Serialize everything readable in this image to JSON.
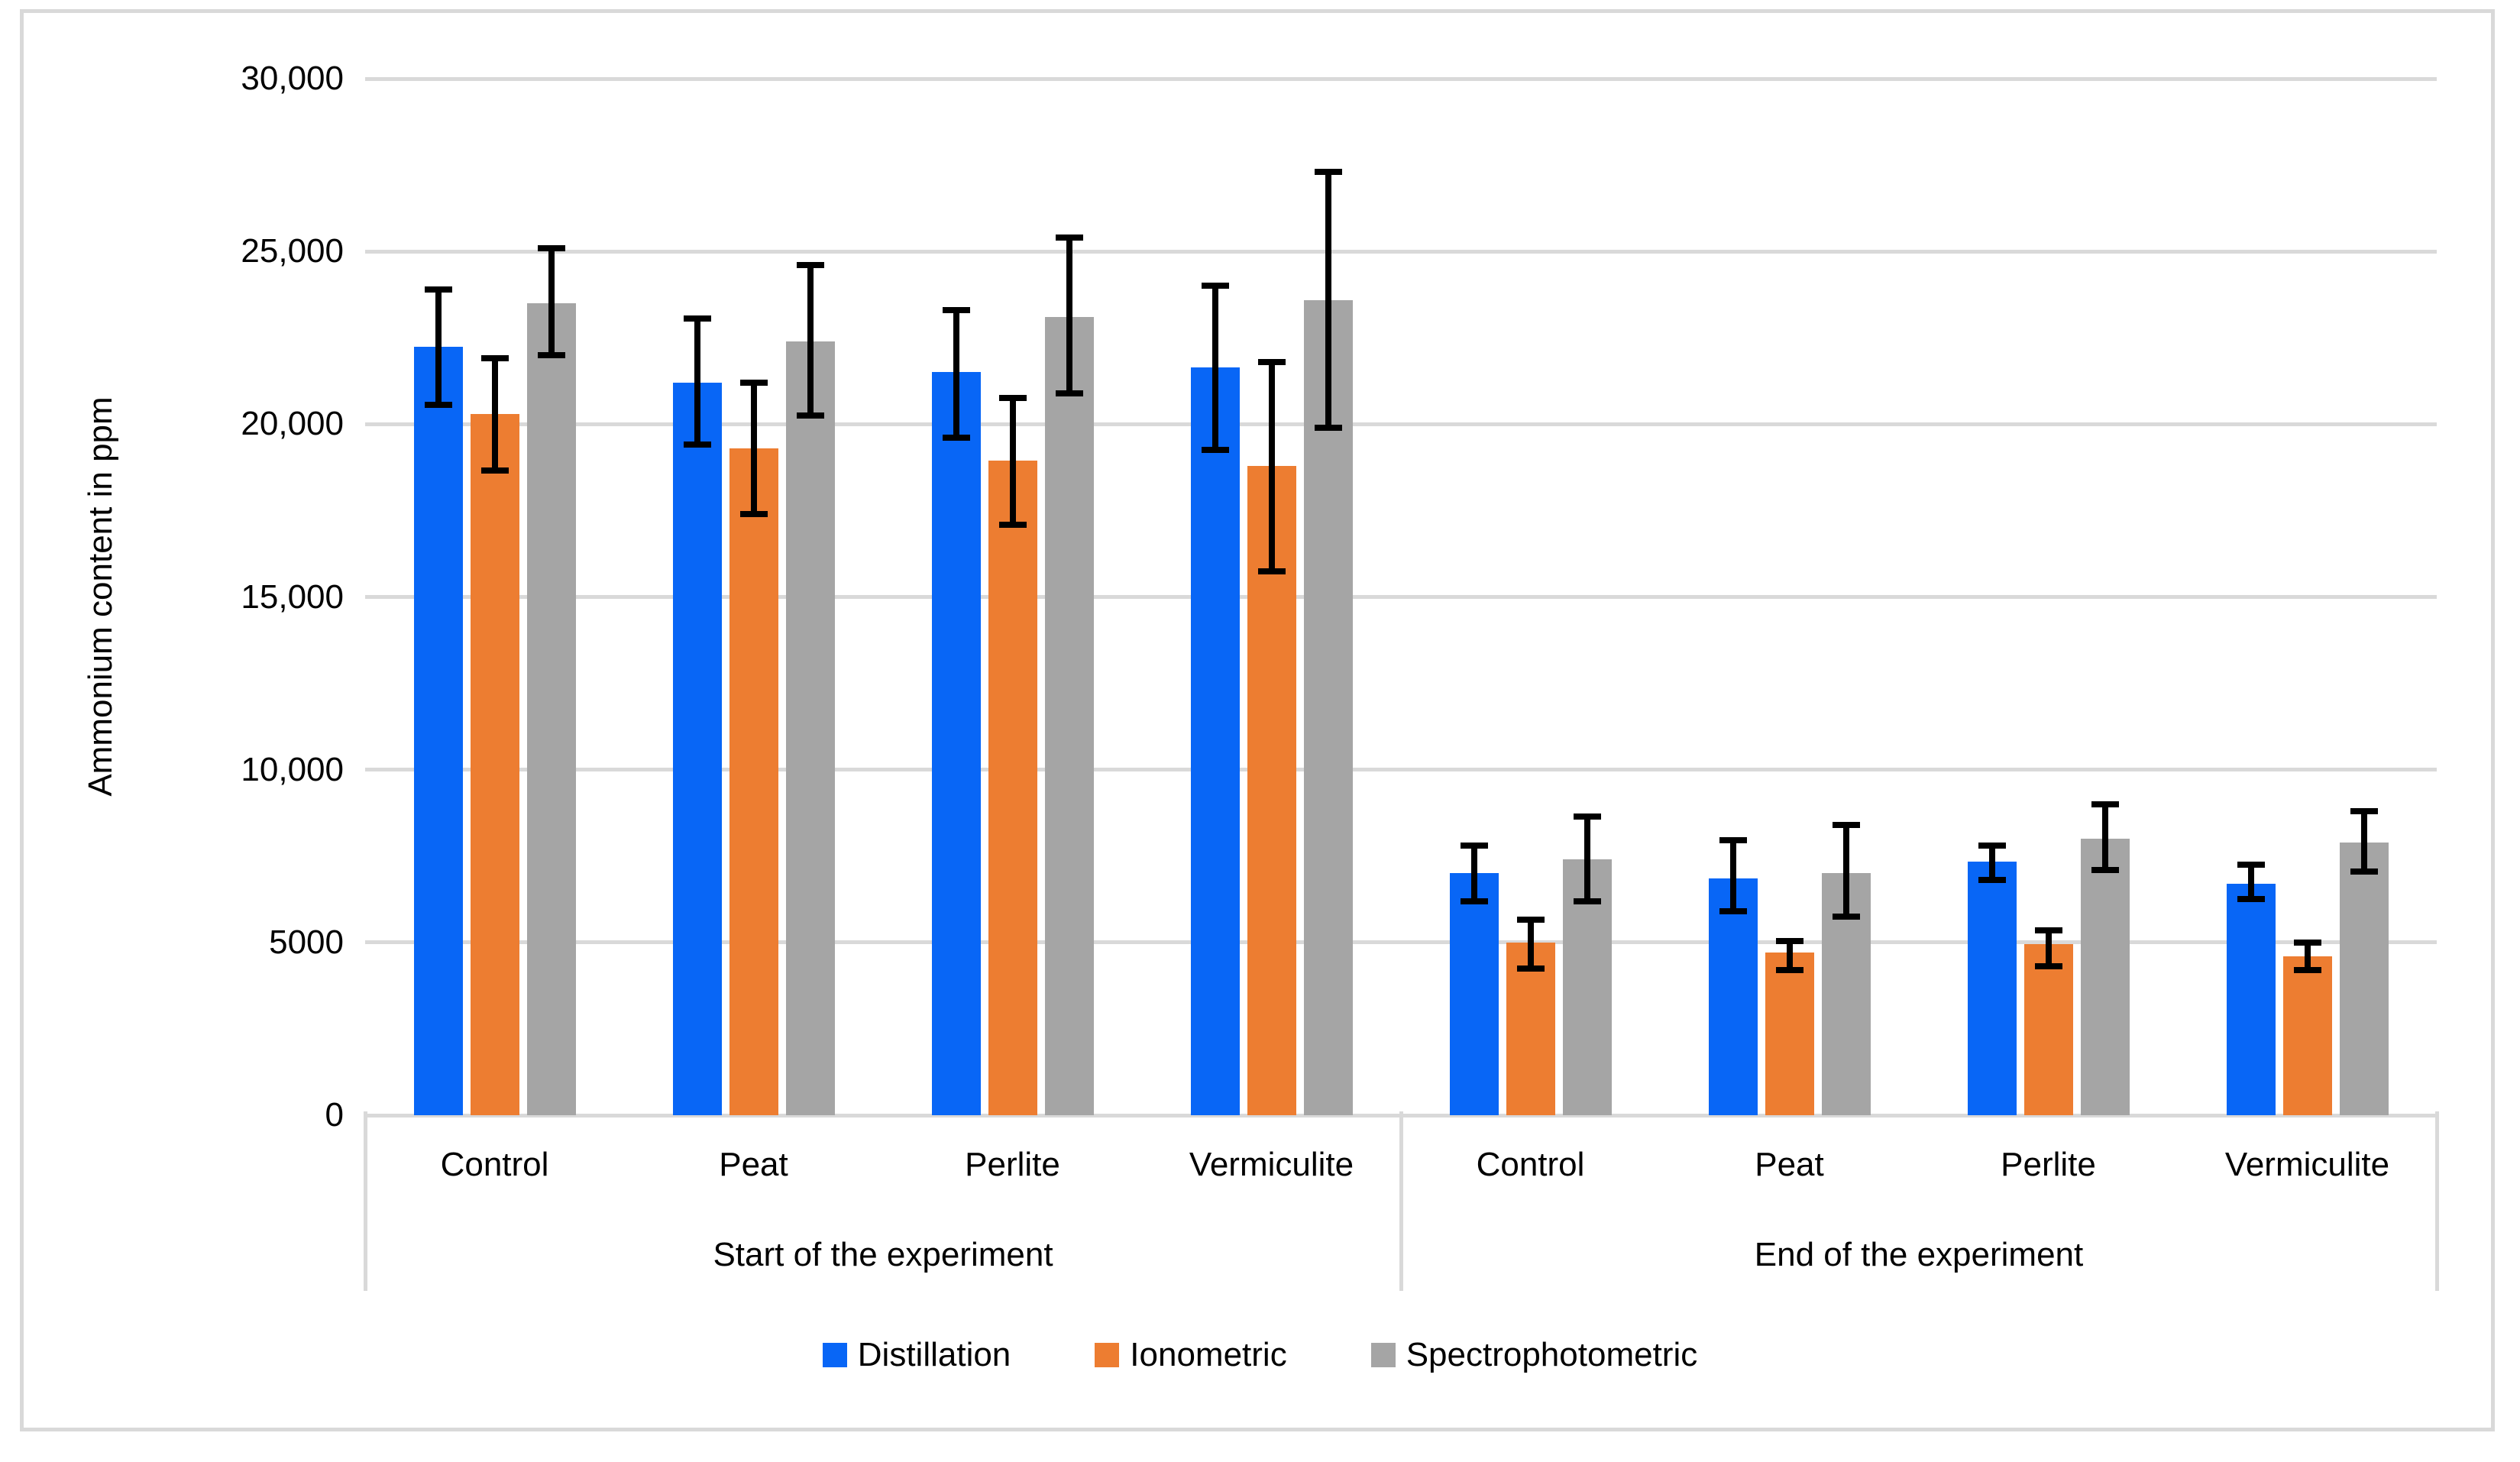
{
  "chart_data": {
    "type": "bar",
    "title": "",
    "ylabel": "Ammonium content in ppm",
    "xlabel": "",
    "grid": true,
    "legend_position": "bottom",
    "gridline_color": "#d9d9d9",
    "error_bar_color": "#000000",
    "y_axis": {
      "min": 0,
      "max": 30000,
      "step": 5000,
      "tick_labels": [
        "30,000",
        "25,000",
        "20,000",
        "15,000",
        "10,000",
        "5000",
        "0"
      ]
    },
    "groups": [
      {
        "label": "Start of the experiment",
        "categories": [
          "Control",
          "Peat",
          "Perlite",
          "Vermiculite"
        ]
      },
      {
        "label": "End of the experiment",
        "categories": [
          "Control",
          "Peat",
          "Perlite",
          "Vermiculite"
        ]
      }
    ],
    "series": [
      {
        "name": "Distillation",
        "color": "#0866F6",
        "values": {
          "start": [
            22250,
            21200,
            21500,
            21650
          ],
          "end": [
            7000,
            6850,
            7350,
            6700
          ]
        },
        "error_low": {
          "start": [
            20550,
            19400,
            19600,
            19250
          ],
          "end": [
            6200,
            5900,
            6800,
            6250
          ]
        },
        "error_high": {
          "start": [
            23900,
            23050,
            23300,
            24000
          ],
          "end": [
            7800,
            7950,
            7800,
            7250
          ]
        }
      },
      {
        "name": "Ionometric",
        "color": "#ED7D31",
        "values": {
          "start": [
            20300,
            19300,
            18950,
            18800
          ],
          "end": [
            5000,
            4700,
            4950,
            4600
          ]
        },
        "error_low": {
          "start": [
            18650,
            17400,
            17100,
            15750
          ],
          "end": [
            4250,
            4200,
            4300,
            4200
          ]
        },
        "error_high": {
          "start": [
            21900,
            21200,
            20750,
            21800
          ],
          "end": [
            5650,
            5050,
            5350,
            5000
          ]
        }
      },
      {
        "name": "Spectrophotometric",
        "color": "#A5A5A5",
        "values": {
          "start": [
            23500,
            22400,
            23100,
            23600
          ],
          "end": [
            7400,
            7000,
            8000,
            7900
          ]
        },
        "error_low": {
          "start": [
            22000,
            20250,
            20900,
            19900
          ],
          "end": [
            6200,
            5750,
            7100,
            7050
          ]
        },
        "error_high": {
          "start": [
            25100,
            24600,
            25400,
            27300
          ],
          "end": [
            8650,
            8400,
            9000,
            8800
          ]
        }
      }
    ]
  }
}
